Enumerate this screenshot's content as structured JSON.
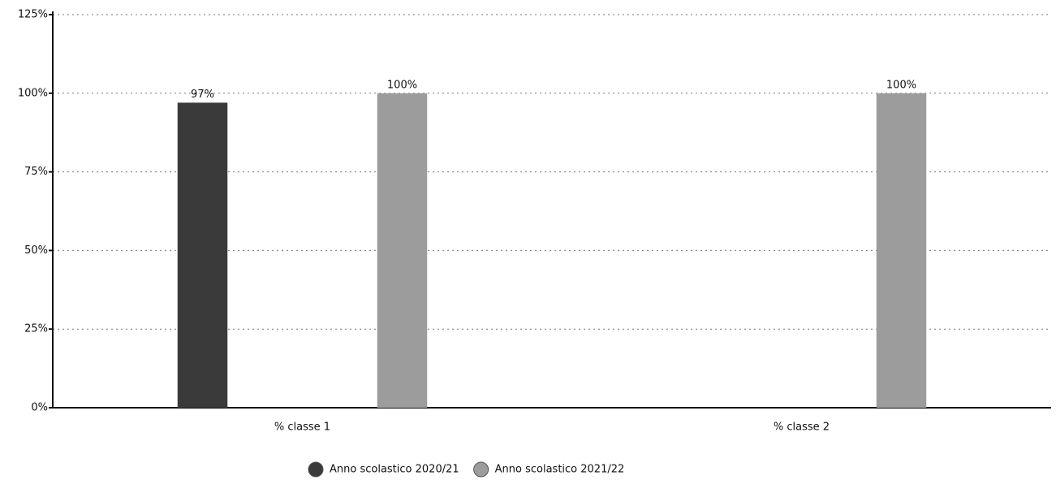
{
  "chart_data": {
    "type": "bar",
    "categories": [
      "% classe 1",
      "% classe 2"
    ],
    "series": [
      {
        "name": "Anno scolastico 2020/21",
        "color": "#3a3a3a",
        "values": [
          97,
          null
        ],
        "value_labels": [
          "97%",
          null
        ]
      },
      {
        "name": "Anno scolastico 2021/22",
        "color": "#9c9c9c",
        "values": [
          100,
          100
        ],
        "value_labels": [
          "100%",
          "100%"
        ]
      }
    ],
    "ylim": [
      0,
      125
    ],
    "yticks": [
      {
        "value": 0,
        "label": "0%"
      },
      {
        "value": 25,
        "label": "25%"
      },
      {
        "value": 50,
        "label": "50%"
      },
      {
        "value": 75,
        "label": "75%"
      },
      {
        "value": 100,
        "label": "100%"
      },
      {
        "value": 125,
        "label": "125%"
      }
    ],
    "grid": true,
    "legend": "bottom"
  }
}
